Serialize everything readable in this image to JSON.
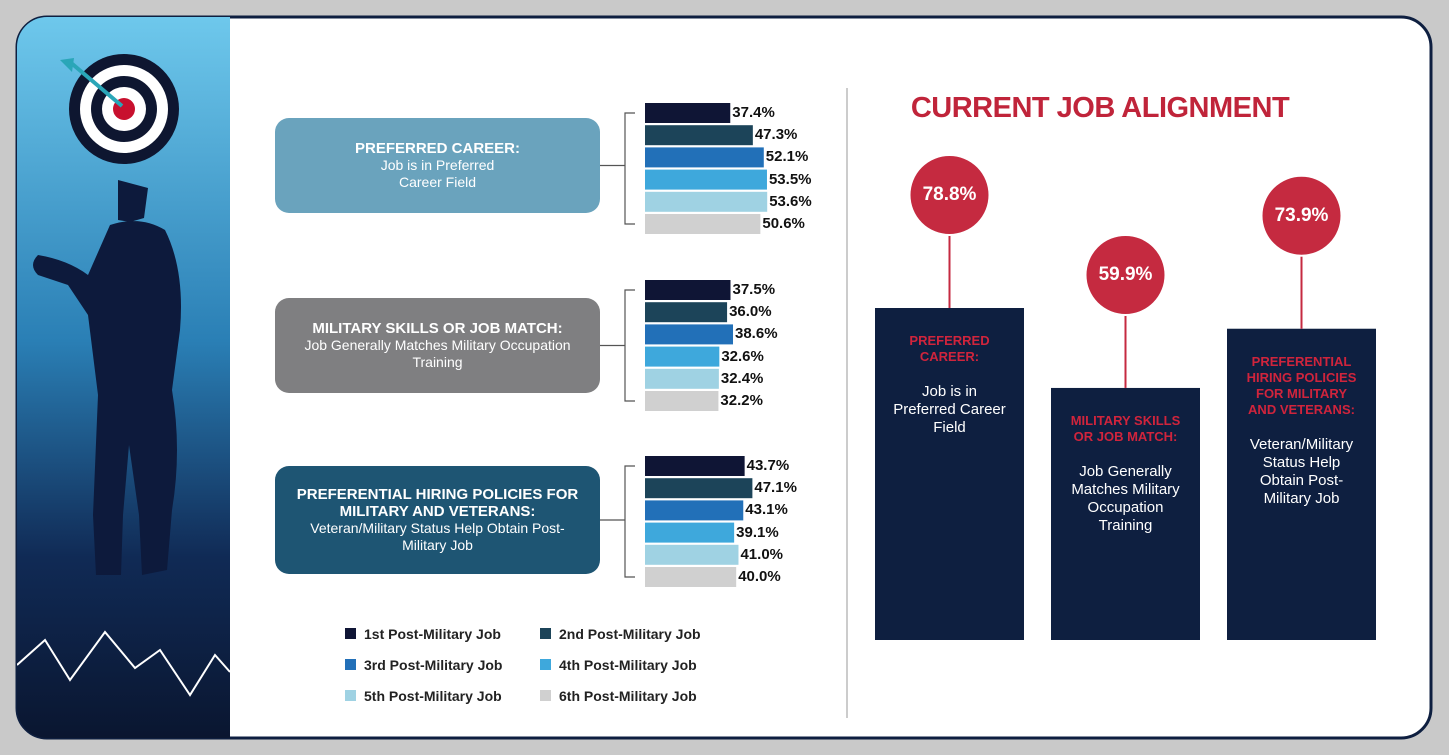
{
  "chart_data": [
    {
      "type": "bar",
      "title": "PREFERRED CAREER:",
      "subtitle": "Job is in Preferred Career Field",
      "values": [
        37.4,
        47.3,
        52.1,
        53.5,
        53.6,
        50.6
      ],
      "value_labels": [
        "37.4%",
        "47.3%",
        "52.1%",
        "53.5%",
        "53.6%",
        "50.6%"
      ]
    },
    {
      "type": "bar",
      "title": "MILITARY SKILLS OR JOB MATCH:",
      "subtitle": "Job Generally Matches Military Occupation Training",
      "values": [
        37.5,
        36.0,
        38.6,
        32.6,
        32.4,
        32.2
      ],
      "value_labels": [
        "37.5%",
        "36.0%",
        "38.6%",
        "32.6%",
        "32.4%",
        "32.2%"
      ]
    },
    {
      "type": "bar",
      "title": "PREFERENTIAL HIRING POLICIES FOR MILITARY AND VETERANS:",
      "subtitle": "Veteran/Military Status Help Obtain Post-Military Job",
      "values": [
        43.7,
        47.1,
        43.1,
        39.1,
        41.0,
        40.0
      ],
      "value_labels": [
        "43.7%",
        "47.1%",
        "43.1%",
        "39.1%",
        "41.0%",
        "40.0%"
      ]
    }
  ],
  "legend": [
    {
      "name": "1st Post-Military Job",
      "color": "#0f1535"
    },
    {
      "name": "2nd Post-Military Job",
      "color": "#1c4459"
    },
    {
      "name": "3rd Post-Military Job",
      "color": "#2270b8"
    },
    {
      "name": "4th Post-Military Job",
      "color": "#3ea8dc"
    },
    {
      "name": "5th Post-Military Job",
      "color": "#9fd2e3"
    },
    {
      "name": "6th Post-Military Job",
      "color": "#d0d0d0"
    }
  ],
  "alignment": {
    "title": "CURRENT JOB ALIGNMENT",
    "items": [
      {
        "value": 78.8,
        "value_label": "78.8%",
        "heading": "PREFERRED CAREER:",
        "text": "Job is in Preferred Career Field"
      },
      {
        "value": 59.9,
        "value_label": "59.9%",
        "heading": "MILITARY SKILLS OR JOB MATCH:",
        "text": "Job Generally Matches Military Occupation Training"
      },
      {
        "value": 73.9,
        "value_label": "73.9%",
        "heading": "PREFERENTIAL HIRING POLICIES FOR MILITARY AND VETERANS:",
        "text": "Veteran/Military Status Help Obtain Post-Military Job"
      }
    ]
  }
}
